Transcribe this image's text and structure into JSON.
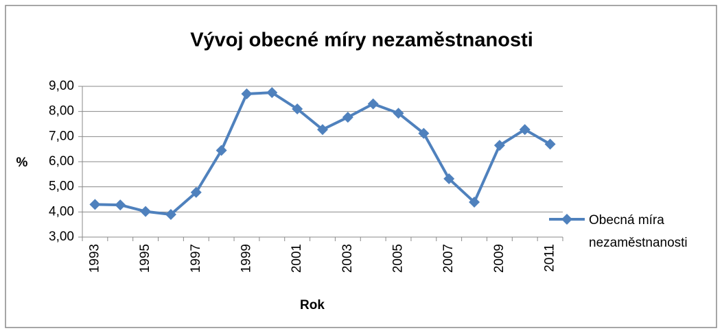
{
  "chart_data": {
    "type": "line",
    "title": "Vývoj obecné míry nezaměstnanosti",
    "xlabel": "Rok",
    "ylabel": "%",
    "categories": [
      "1993",
      null,
      "1995",
      null,
      "1997",
      null,
      "1999",
      null,
      "2001",
      null,
      "2003",
      null,
      "2005",
      null,
      "2007",
      null,
      "2009",
      null,
      "2011"
    ],
    "series": [
      {
        "name": "Obecná míra nezaměstnanosti",
        "color": "#4f81bd",
        "values": [
          4.3,
          4.28,
          4.02,
          3.9,
          4.78,
          6.45,
          8.7,
          8.75,
          8.1,
          7.28,
          7.77,
          8.3,
          7.93,
          7.13,
          5.32,
          4.39,
          6.65,
          7.28,
          6.7
        ]
      }
    ],
    "ylim": [
      3,
      9
    ],
    "yticks": [
      {
        "value": 3,
        "label": "3,00"
      },
      {
        "value": 4,
        "label": "4,00"
      },
      {
        "value": 5,
        "label": "5,00"
      },
      {
        "value": 6,
        "label": "6,00"
      },
      {
        "value": 7,
        "label": "7,00"
      },
      {
        "value": 8,
        "label": "8,00"
      },
      {
        "value": 9,
        "label": "9,00"
      }
    ],
    "grid": true,
    "legend": "right"
  }
}
